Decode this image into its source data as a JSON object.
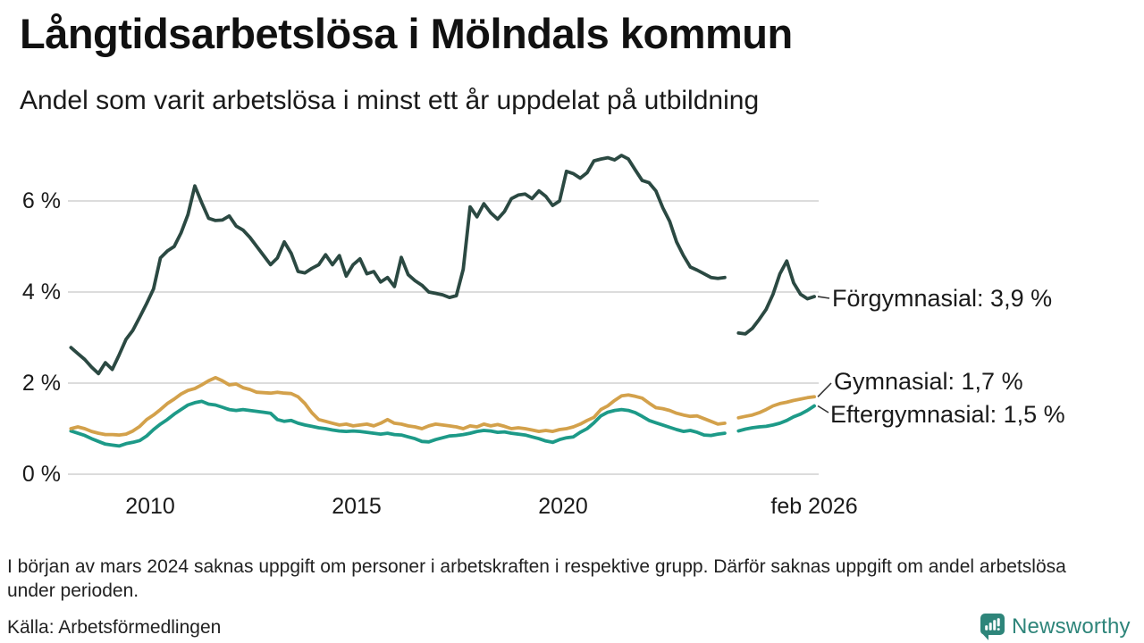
{
  "header": {
    "title": "Långtidsarbetslösa i Mölndals kommun",
    "subtitle": "Andel som varit arbetslösa i minst ett år uppdelat på utbildning"
  },
  "chart_data": {
    "type": "line",
    "title": "Långtidsarbetslösa i Mölndals kommun",
    "subtitle": "Andel som varit arbetslösa i minst ett år uppdelat på utbildning",
    "unit": "%",
    "grid": "horizontal",
    "x_range": [
      2008.0,
      2026.25
    ],
    "ylim": [
      0,
      7.5
    ],
    "x_start": 2008.0833,
    "x_step": 0.166667,
    "x_axis_ticks": [
      {
        "value": 2010,
        "label": "2010"
      },
      {
        "value": 2015,
        "label": "2015"
      },
      {
        "value": 2020,
        "label": "2020"
      },
      {
        "value": 2026.0833,
        "label": "feb 2026"
      }
    ],
    "y_axis_ticks": [
      {
        "value": 0,
        "label": "0 %"
      },
      {
        "value": 2,
        "label": "2 %"
      },
      {
        "value": 4,
        "label": "4 %"
      },
      {
        "value": 6,
        "label": "6 %"
      }
    ],
    "gap_note": "values are null where data is missing around March 2024",
    "series": [
      {
        "name": "Förgymnasial",
        "end_value": "3,9 %",
        "end_label": "Förgymnasial: 3,9 %",
        "color": "#2b4942",
        "values": [
          2.78,
          2.65,
          2.52,
          2.35,
          2.21,
          2.45,
          2.3,
          2.62,
          2.96,
          3.16,
          3.45,
          3.75,
          4.07,
          4.75,
          4.9,
          5.0,
          5.3,
          5.7,
          6.33,
          5.96,
          5.62,
          5.57,
          5.58,
          5.67,
          5.45,
          5.36,
          5.2,
          5.0,
          4.8,
          4.6,
          4.75,
          5.1,
          4.85,
          4.45,
          4.42,
          4.52,
          4.6,
          4.82,
          4.6,
          4.8,
          4.35,
          4.6,
          4.73,
          4.4,
          4.45,
          4.22,
          4.32,
          4.12,
          4.76,
          4.38,
          4.25,
          4.15,
          4.0,
          3.97,
          3.94,
          3.88,
          3.92,
          4.5,
          5.87,
          5.65,
          5.94,
          5.74,
          5.6,
          5.77,
          6.05,
          6.13,
          6.15,
          6.05,
          6.22,
          6.1,
          5.9,
          6.0,
          6.65,
          6.6,
          6.5,
          6.62,
          6.88,
          6.92,
          6.95,
          6.9,
          7.0,
          6.92,
          6.68,
          6.45,
          6.4,
          6.22,
          5.85,
          5.55,
          5.1,
          4.8,
          4.55,
          4.48,
          4.4,
          4.32,
          4.3,
          4.32,
          null,
          3.1,
          3.08,
          3.2,
          3.4,
          3.62,
          3.95,
          4.4,
          4.68,
          4.2,
          3.95,
          3.85,
          3.9
        ]
      },
      {
        "name": "Gymnasial",
        "end_value": "1,7 %",
        "end_label": "Gymnasial: 1,7 %",
        "color": "#d3a14b",
        "values": [
          1.0,
          1.04,
          1.0,
          0.94,
          0.9,
          0.87,
          0.87,
          0.86,
          0.88,
          0.95,
          1.05,
          1.2,
          1.3,
          1.42,
          1.55,
          1.65,
          1.76,
          1.84,
          1.88,
          1.96,
          2.05,
          2.12,
          2.05,
          1.96,
          1.98,
          1.9,
          1.86,
          1.8,
          1.79,
          1.78,
          1.8,
          1.78,
          1.77,
          1.7,
          1.55,
          1.35,
          1.2,
          1.16,
          1.12,
          1.08,
          1.1,
          1.06,
          1.08,
          1.1,
          1.06,
          1.12,
          1.2,
          1.12,
          1.1,
          1.06,
          1.04,
          1.0,
          1.06,
          1.1,
          1.08,
          1.06,
          1.04,
          1.0,
          1.06,
          1.04,
          1.1,
          1.06,
          1.09,
          1.05,
          1.0,
          1.02,
          1.0,
          0.97,
          0.94,
          0.96,
          0.94,
          0.98,
          1.0,
          1.04,
          1.1,
          1.18,
          1.25,
          1.42,
          1.5,
          1.62,
          1.72,
          1.74,
          1.71,
          1.67,
          1.56,
          1.46,
          1.44,
          1.4,
          1.34,
          1.3,
          1.27,
          1.28,
          1.22,
          1.16,
          1.1,
          1.12,
          null,
          1.24,
          1.27,
          1.3,
          1.35,
          1.42,
          1.5,
          1.55,
          1.58,
          1.62,
          1.65,
          1.68,
          1.7
        ]
      },
      {
        "name": "Eftergymnasial",
        "end_value": "1,5 %",
        "end_label": "Eftergymnasial: 1,5 %",
        "color": "#1d9a88",
        "values": [
          0.95,
          0.9,
          0.85,
          0.78,
          0.72,
          0.66,
          0.64,
          0.62,
          0.67,
          0.7,
          0.74,
          0.84,
          0.98,
          1.1,
          1.2,
          1.32,
          1.42,
          1.52,
          1.57,
          1.6,
          1.54,
          1.52,
          1.47,
          1.42,
          1.4,
          1.42,
          1.4,
          1.38,
          1.36,
          1.34,
          1.2,
          1.16,
          1.18,
          1.12,
          1.08,
          1.05,
          1.02,
          1.0,
          0.97,
          0.95,
          0.94,
          0.95,
          0.94,
          0.92,
          0.9,
          0.88,
          0.9,
          0.87,
          0.86,
          0.82,
          0.78,
          0.72,
          0.71,
          0.76,
          0.8,
          0.84,
          0.85,
          0.87,
          0.9,
          0.94,
          0.96,
          0.95,
          0.92,
          0.93,
          0.9,
          0.88,
          0.86,
          0.82,
          0.78,
          0.73,
          0.7,
          0.76,
          0.8,
          0.82,
          0.92,
          1.0,
          1.13,
          1.28,
          1.36,
          1.4,
          1.42,
          1.4,
          1.35,
          1.27,
          1.18,
          1.13,
          1.08,
          1.03,
          0.98,
          0.94,
          0.96,
          0.92,
          0.86,
          0.85,
          0.88,
          0.9,
          null,
          0.95,
          0.99,
          1.02,
          1.04,
          1.05,
          1.08,
          1.12,
          1.18,
          1.26,
          1.32,
          1.4,
          1.5
        ]
      }
    ],
    "colors": {
      "gridline": "#dcdcdc",
      "axis_text": "#1a1a1a",
      "connector": "#333333"
    }
  },
  "footer": {
    "note": "I början av mars 2024 saknas uppgift om personer i arbetskraften i respektive grupp. Därför saknas uppgift om andel arbetslösa under perioden.",
    "source": "Källa: Arbetsförmedlingen"
  },
  "branding": {
    "logo_text": "Newsworthy",
    "logo_color": "#2e857a",
    "logo_icon": "speech-bubble-bar-chart-icon"
  }
}
